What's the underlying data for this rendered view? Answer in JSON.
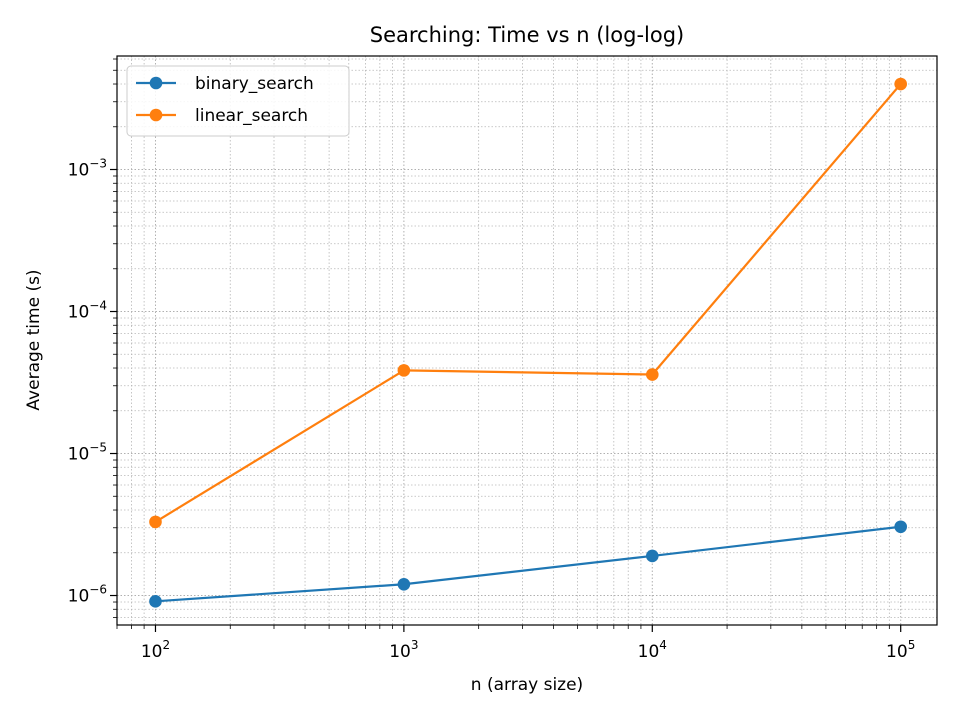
{
  "chart_data": {
    "type": "line",
    "title": "Searching: Time vs n (log-log)",
    "xlabel": "n (array size)",
    "ylabel": "Average time (s)",
    "xscale": "log",
    "yscale": "log",
    "xlim": [
      70,
      140000
    ],
    "ylim": [
      6.2e-07,
      0.0063
    ],
    "grid": true,
    "grid_which": "both",
    "legend_position": "upper-left",
    "x_ticks": [
      {
        "value": 100,
        "base": "10",
        "exp": "2"
      },
      {
        "value": 1000,
        "base": "10",
        "exp": "3"
      },
      {
        "value": 10000,
        "base": "10",
        "exp": "4"
      },
      {
        "value": 100000,
        "base": "10",
        "exp": "5"
      }
    ],
    "y_ticks": [
      {
        "value": 1e-06,
        "base": "10",
        "exp": "−6"
      },
      {
        "value": 1e-05,
        "base": "10",
        "exp": "−5"
      },
      {
        "value": 0.0001,
        "base": "10",
        "exp": "−4"
      },
      {
        "value": 0.001,
        "base": "10",
        "exp": "−3"
      }
    ],
    "x": [
      100,
      1000,
      10000,
      100000
    ],
    "series": [
      {
        "name": "binary_search",
        "color": "#1f77b4",
        "marker": "circle",
        "values": [
          9.1e-07,
          1.2e-06,
          1.9e-06,
          3.05e-06
        ]
      },
      {
        "name": "linear_search",
        "color": "#ff7f0e",
        "marker": "circle",
        "values": [
          3.3e-06,
          3.85e-05,
          3.6e-05,
          0.004
        ]
      }
    ]
  }
}
